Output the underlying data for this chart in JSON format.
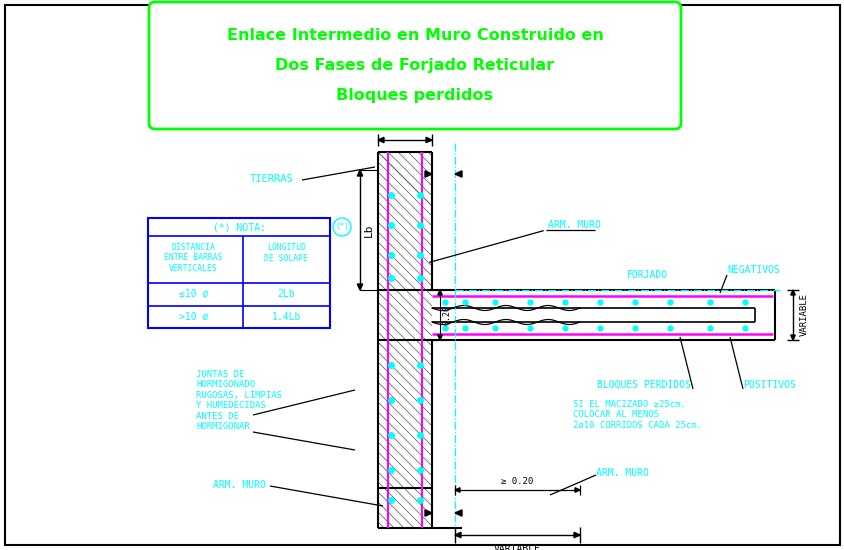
{
  "title_lines": [
    "Enlace Intermedio en Muro Construido en",
    "Dos Fases de Forjado Reticular",
    "Bloques perdidos"
  ],
  "bg_color": "#ffffff",
  "green": "#00ff00",
  "cyan": "#00ffff",
  "magenta": "#ff00ff",
  "black": "#000000",
  "blue": "#0000ff",
  "note_title": "(*) NOTA:",
  "note_col1_header": "DISTANCIA\nENTRE BARRAS\nVERTICALES",
  "note_col2_header": "LONGITUD\nDE SOLAPE",
  "note_row1_col1": "≤10 ø",
  "note_row1_col2": "2Lb",
  "note_row2_col1": ">10 ø",
  "note_row2_col2": "1.4Lb",
  "label_tierras": "TIERRAS",
  "label_arm_muro_top": "ARM. MURO",
  "label_forjado": "FORJADO",
  "label_negativos": "NEGATIVOS",
  "label_bloques": "BLOQUES PERDIDOS",
  "label_positivos": "POSITIVOS",
  "label_variable_right": "VARIABLE",
  "label_variable_bottom": "VARIABLE",
  "label_lb": "Lb",
  "label_020_vert": "0.20",
  "label_020_horiz": "≥ 0.20",
  "label_juntas": "JUNTAS DE\nHORMIGONADO\nRUGOSAS, LIMPIAS\nY HUMEDECIDAS\nANTES DE\nHORMIGONAR",
  "label_arm_muro_bot_left": "ARM. MURO",
  "label_arm_muro_bot_right": "ARM. MURO",
  "label_si_macizado": "SI EL MACIZADO ≥25cm.\nCOLOCAR AL MENOS\n2ø10 CORRIDOS CADA 25cm."
}
